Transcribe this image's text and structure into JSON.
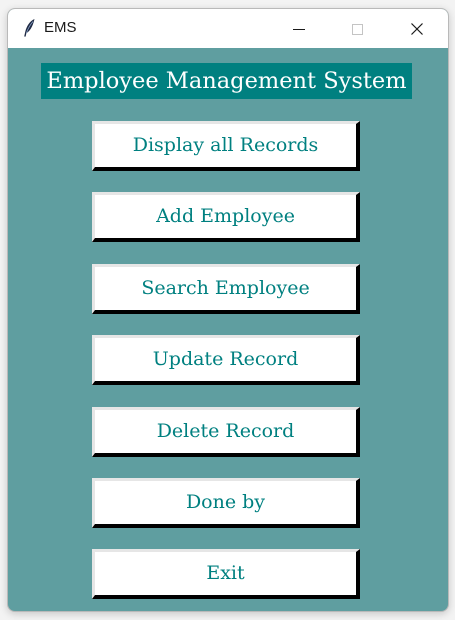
{
  "window": {
    "title": "EMS",
    "icon": "feather-icon"
  },
  "header": {
    "title": "Employee Management System"
  },
  "buttons": [
    "Display all Records",
    "Add Employee",
    "Search Employee",
    "Update Record",
    "Delete Record",
    "Done by",
    "Exit"
  ],
  "colors": {
    "background": "#5f9ea0",
    "header_bg": "#008080",
    "header_text": "#ffffff",
    "button_text": "#008080",
    "button_bg": "#ffffff"
  }
}
